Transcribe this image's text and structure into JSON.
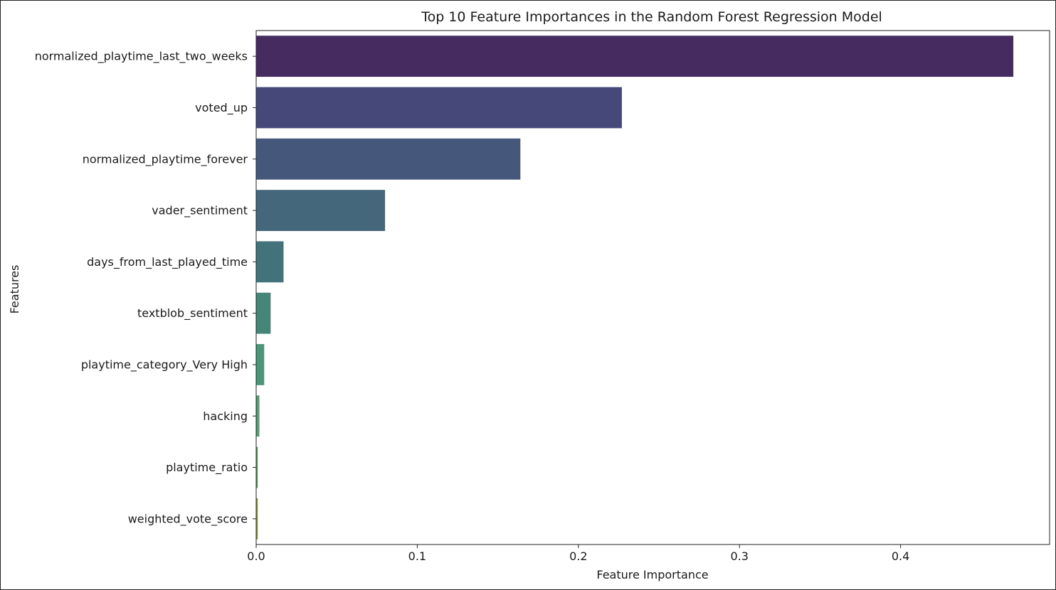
{
  "chart_data": {
    "type": "bar",
    "orientation": "horizontal",
    "title": "Top 10 Feature Importances in the Random Forest Regression Model",
    "xlabel": "Feature Importance",
    "ylabel": "Features",
    "xlim": [
      0,
      0.4925
    ],
    "xticks": [
      0.0,
      0.1,
      0.2,
      0.3,
      0.4
    ],
    "xtick_labels": [
      "0.0",
      "0.1",
      "0.2",
      "0.3",
      "0.4"
    ],
    "grid": false,
    "legend": "none",
    "categories": [
      "normalized_playtime_last_two_weeks",
      "voted_up",
      "normalized_playtime_forever",
      "vader_sentiment",
      "days_from_last_played_time",
      "textblob_sentiment",
      "playtime_category_Very High",
      "hacking",
      "playtime_ratio",
      "weighted_vote_score"
    ],
    "values": [
      0.47,
      0.227,
      0.164,
      0.08,
      0.017,
      0.009,
      0.005,
      0.002,
      0.001,
      0.001
    ],
    "colors": [
      "#452b60",
      "#454879",
      "#45587c",
      "#45677b",
      "#43737a",
      "#458678",
      "#4a9679",
      "#539e74",
      "#5b9d5e",
      "#8a9a3d"
    ]
  }
}
